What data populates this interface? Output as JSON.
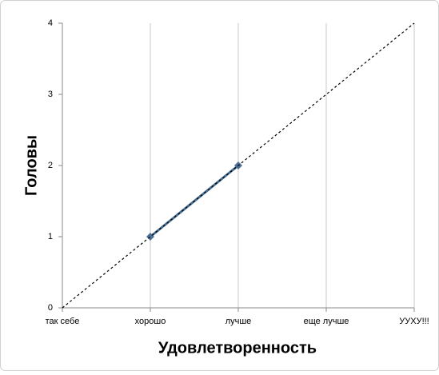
{
  "chart_data": {
    "type": "line",
    "x_label": "Удовлетворенность",
    "y_label": "Головы",
    "categories": [
      "так себе",
      "хорошо",
      "лучше",
      "еще лучше",
      "УУХУ!!!"
    ],
    "series": [
      {
        "color": "#4a7094",
        "marker": "diamond",
        "dashed": false,
        "values": [
          null,
          1,
          2,
          null,
          null
        ]
      },
      {
        "color": "#000000",
        "marker": "none",
        "dashed": true,
        "values": [
          0,
          1,
          2,
          3,
          4
        ]
      }
    ],
    "ylim": [
      0,
      4
    ],
    "yticks": [
      0,
      1,
      2,
      3,
      4
    ],
    "grid": true
  }
}
